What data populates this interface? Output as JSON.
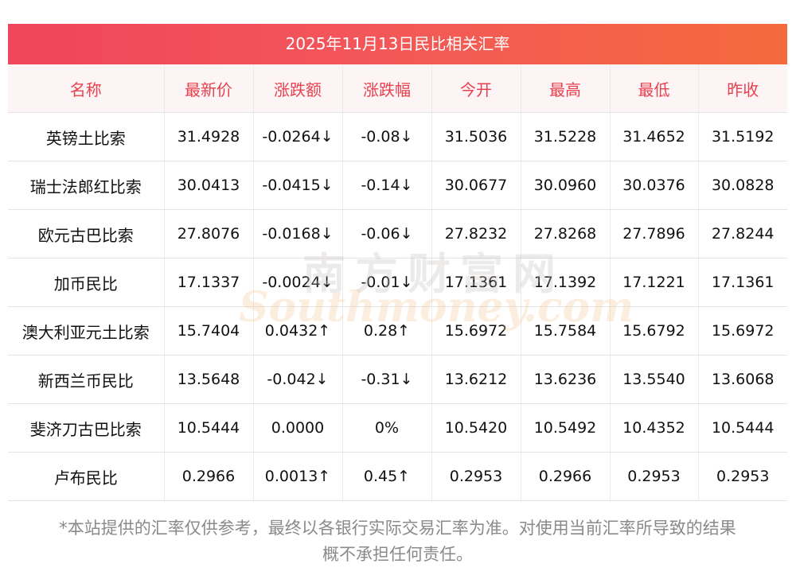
{
  "title": "2025年11月13日民比相关汇率",
  "headers": [
    "名称",
    "最新价",
    "涨跌额",
    "涨跌幅",
    "今开",
    "最高",
    "最低",
    "昨收"
  ],
  "rows": [
    {
      "name": "英镑土比索",
      "latest": "31.4928",
      "change": "-0.0264↓",
      "pct": "-0.08↓",
      "open": "31.5036",
      "high": "31.5228",
      "low": "31.4652",
      "prev": "31.5192",
      "dir": "down"
    },
    {
      "name": "瑞士法郎红比索",
      "latest": "30.0413",
      "change": "-0.0415↓",
      "pct": "-0.14↓",
      "open": "30.0677",
      "high": "30.0960",
      "low": "30.0376",
      "prev": "30.0828",
      "dir": "down"
    },
    {
      "name": "欧元古巴比索",
      "latest": "27.8076",
      "change": "-0.0168↓",
      "pct": "-0.06↓",
      "open": "27.8232",
      "high": "27.8268",
      "low": "27.7896",
      "prev": "27.8244",
      "dir": "down"
    },
    {
      "name": "加币民比",
      "latest": "17.1337",
      "change": "-0.0024↓",
      "pct": "-0.01↓",
      "open": "17.1361",
      "high": "17.1392",
      "low": "17.1221",
      "prev": "17.1361",
      "dir": "down"
    },
    {
      "name": "澳大利亚元土比索",
      "latest": "15.7404",
      "change": "0.0432↑",
      "pct": "0.28↑",
      "open": "15.6972",
      "high": "15.7584",
      "low": "15.6792",
      "prev": "15.6972",
      "dir": "up"
    },
    {
      "name": "新西兰币民比",
      "latest": "13.5648",
      "change": "-0.042↓",
      "pct": "-0.31↓",
      "open": "13.6212",
      "high": "13.6236",
      "low": "13.5540",
      "prev": "13.6068",
      "dir": "down"
    },
    {
      "name": "斐济刀古巴比索",
      "latest": "10.5444",
      "change": "0.0000",
      "pct": "0%",
      "open": "10.5420",
      "high": "10.5492",
      "low": "10.4352",
      "prev": "10.5444",
      "dir": "flat"
    },
    {
      "name": "卢布民比",
      "latest": "0.2966",
      "change": "0.0013↑",
      "pct": "0.45↑",
      "open": "0.2953",
      "high": "0.2966",
      "low": "0.2953",
      "prev": "0.2953",
      "dir": "up"
    }
  ],
  "watermark": {
    "cn": "南方财富网",
    "en": "Southmoney.com"
  },
  "footnote_line1": "*本站提供的汇率仅供参考，最终以各银行实际交易汇率为准。对使用当前汇率所导致的结果",
  "footnote_line2": "概不承担任何责任。",
  "colors": {
    "up": "#e8242b",
    "down": "#2a8a2a",
    "header_text": "#e8404f",
    "title_gradient_start": "#f0455a",
    "title_gradient_end": "#f46a3c"
  }
}
